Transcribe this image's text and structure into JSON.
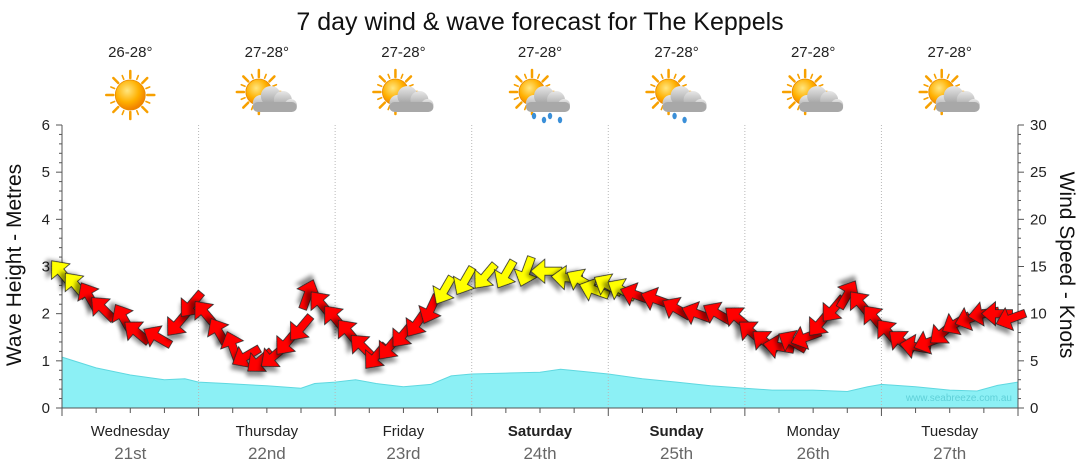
{
  "title": "7 day wind & wave forecast for The Keppels",
  "watermark": "www.seabreeze.com.au",
  "days": [
    {
      "name": "Wednesday",
      "date": "21st",
      "bold": false,
      "temp": "26-28°",
      "icon": "sunny-icon"
    },
    {
      "name": "Thursday",
      "date": "22nd",
      "bold": false,
      "temp": "27-28°",
      "icon": "partly-cloudy-icon"
    },
    {
      "name": "Friday",
      "date": "23rd",
      "bold": false,
      "temp": "27-28°",
      "icon": "partly-cloudy-icon"
    },
    {
      "name": "Saturday",
      "date": "24th",
      "bold": true,
      "temp": "27-28°",
      "icon": "showers-icon"
    },
    {
      "name": "Sunday",
      "date": "25th",
      "bold": true,
      "temp": "27-28°",
      "icon": "light-showers-icon"
    },
    {
      "name": "Monday",
      "date": "26th",
      "bold": false,
      "temp": "27-28°",
      "icon": "partly-cloudy-icon"
    },
    {
      "name": "Tuesday",
      "date": "27th",
      "bold": false,
      "temp": "27-28°",
      "icon": "partly-cloudy-icon"
    }
  ],
  "chart_data": {
    "type": "area",
    "title": "7 day wind & wave forecast for The Keppels",
    "x_unit": "days from start of Wednesday 21st",
    "y_left": {
      "label": "Wave Height - Metres",
      "range": [
        0,
        6
      ],
      "ticks": [
        "0",
        "1",
        "2",
        "3",
        "4",
        "5",
        "6"
      ]
    },
    "y_right": {
      "label": "Wind Speed - Knots",
      "range": [
        0,
        30
      ],
      "ticks": [
        "0",
        "5",
        "10",
        "15",
        "20",
        "25",
        "30"
      ]
    },
    "grid": "dotted vertical day dividers",
    "wave_height": [
      {
        "x": 0.0,
        "y": 1.08
      },
      {
        "x": 0.25,
        "y": 0.85
      },
      {
        "x": 0.5,
        "y": 0.7
      },
      {
        "x": 0.75,
        "y": 0.6
      },
      {
        "x": 0.9,
        "y": 0.62
      },
      {
        "x": 1.0,
        "y": 0.55
      },
      {
        "x": 1.2,
        "y": 0.52
      },
      {
        "x": 1.5,
        "y": 0.47
      },
      {
        "x": 1.75,
        "y": 0.42
      },
      {
        "x": 1.85,
        "y": 0.52
      },
      {
        "x": 2.0,
        "y": 0.55
      },
      {
        "x": 2.15,
        "y": 0.6
      },
      {
        "x": 2.3,
        "y": 0.52
      },
      {
        "x": 2.5,
        "y": 0.45
      },
      {
        "x": 2.7,
        "y": 0.5
      },
      {
        "x": 2.85,
        "y": 0.68
      },
      {
        "x": 3.0,
        "y": 0.72
      },
      {
        "x": 3.25,
        "y": 0.74
      },
      {
        "x": 3.5,
        "y": 0.76
      },
      {
        "x": 3.65,
        "y": 0.82
      },
      {
        "x": 3.8,
        "y": 0.78
      },
      {
        "x": 4.0,
        "y": 0.72
      },
      {
        "x": 4.25,
        "y": 0.62
      },
      {
        "x": 4.5,
        "y": 0.55
      },
      {
        "x": 4.75,
        "y": 0.47
      },
      {
        "x": 5.0,
        "y": 0.42
      },
      {
        "x": 5.2,
        "y": 0.38
      },
      {
        "x": 5.5,
        "y": 0.38
      },
      {
        "x": 5.75,
        "y": 0.35
      },
      {
        "x": 5.9,
        "y": 0.45
      },
      {
        "x": 6.0,
        "y": 0.5
      },
      {
        "x": 6.25,
        "y": 0.45
      },
      {
        "x": 6.5,
        "y": 0.38
      },
      {
        "x": 6.7,
        "y": 0.36
      },
      {
        "x": 6.85,
        "y": 0.48
      },
      {
        "x": 7.0,
        "y": 0.55
      }
    ],
    "wind": [
      {
        "x": 0.0,
        "knots": 14.3,
        "dir_deg": 320
      },
      {
        "x": 0.1,
        "knots": 13.0,
        "dir_deg": 320
      },
      {
        "x": 0.2,
        "knots": 11.8,
        "dir_deg": 330
      },
      {
        "x": 0.3,
        "knots": 10.5,
        "dir_deg": 315
      },
      {
        "x": 0.45,
        "knots": 9.5,
        "dir_deg": 330
      },
      {
        "x": 0.55,
        "knots": 8.0,
        "dir_deg": 310
      },
      {
        "x": 0.7,
        "knots": 7.5,
        "dir_deg": 300
      },
      {
        "x": 0.85,
        "knots": 9.0,
        "dir_deg": 220
      },
      {
        "x": 0.95,
        "knots": 11.0,
        "dir_deg": 220
      },
      {
        "x": 1.05,
        "knots": 10.0,
        "dir_deg": 320
      },
      {
        "x": 1.15,
        "knots": 8.0,
        "dir_deg": 330
      },
      {
        "x": 1.25,
        "knots": 6.5,
        "dir_deg": 340
      },
      {
        "x": 1.35,
        "knots": 5.5,
        "dir_deg": 240
      },
      {
        "x": 1.45,
        "knots": 5.0,
        "dir_deg": 230
      },
      {
        "x": 1.55,
        "knots": 5.5,
        "dir_deg": 230
      },
      {
        "x": 1.65,
        "knots": 7.0,
        "dir_deg": 220
      },
      {
        "x": 1.75,
        "knots": 8.5,
        "dir_deg": 220
      },
      {
        "x": 1.8,
        "knots": 12.0,
        "dir_deg": 20
      },
      {
        "x": 1.9,
        "knots": 11.0,
        "dir_deg": 320
      },
      {
        "x": 2.0,
        "knots": 9.5,
        "dir_deg": 320
      },
      {
        "x": 2.1,
        "knots": 8.0,
        "dir_deg": 320
      },
      {
        "x": 2.2,
        "knots": 6.5,
        "dir_deg": 315
      },
      {
        "x": 2.3,
        "knots": 5.5,
        "dir_deg": 220
      },
      {
        "x": 2.4,
        "knots": 6.5,
        "dir_deg": 220
      },
      {
        "x": 2.5,
        "knots": 7.8,
        "dir_deg": 220
      },
      {
        "x": 2.6,
        "knots": 9.0,
        "dir_deg": 215
      },
      {
        "x": 2.7,
        "knots": 10.5,
        "dir_deg": 205
      },
      {
        "x": 2.8,
        "knots": 12.5,
        "dir_deg": 210
      },
      {
        "x": 2.95,
        "knots": 13.5,
        "dir_deg": 210
      },
      {
        "x": 3.1,
        "knots": 14.0,
        "dir_deg": 220
      },
      {
        "x": 3.25,
        "knots": 14.2,
        "dir_deg": 210
      },
      {
        "x": 3.4,
        "knots": 14.5,
        "dir_deg": 200
      },
      {
        "x": 3.55,
        "knots": 14.5,
        "dir_deg": 270
      },
      {
        "x": 3.7,
        "knots": 13.8,
        "dir_deg": 275
      },
      {
        "x": 3.8,
        "knots": 13.5,
        "dir_deg": 300
      },
      {
        "x": 3.9,
        "knots": 12.5,
        "dir_deg": 290
      },
      {
        "x": 4.0,
        "knots": 13.0,
        "dir_deg": 300
      },
      {
        "x": 4.1,
        "knots": 12.5,
        "dir_deg": 300
      },
      {
        "x": 4.2,
        "knots": 12.0,
        "dir_deg": 290
      },
      {
        "x": 4.35,
        "knots": 11.5,
        "dir_deg": 290
      },
      {
        "x": 4.5,
        "knots": 10.5,
        "dir_deg": 300
      },
      {
        "x": 4.65,
        "knots": 10.0,
        "dir_deg": 290
      },
      {
        "x": 4.8,
        "knots": 10.0,
        "dir_deg": 300
      },
      {
        "x": 4.95,
        "knots": 9.5,
        "dir_deg": 310
      },
      {
        "x": 5.05,
        "knots": 8.0,
        "dir_deg": 310
      },
      {
        "x": 5.15,
        "knots": 7.0,
        "dir_deg": 310
      },
      {
        "x": 5.25,
        "knots": 6.5,
        "dir_deg": 280
      },
      {
        "x": 5.35,
        "knots": 7.0,
        "dir_deg": 300
      },
      {
        "x": 5.45,
        "knots": 7.5,
        "dir_deg": 250
      },
      {
        "x": 5.55,
        "knots": 9.0,
        "dir_deg": 220
      },
      {
        "x": 5.65,
        "knots": 10.5,
        "dir_deg": 220
      },
      {
        "x": 5.75,
        "knots": 12.0,
        "dir_deg": 30
      },
      {
        "x": 5.85,
        "knots": 11.0,
        "dir_deg": 320
      },
      {
        "x": 5.95,
        "knots": 9.5,
        "dir_deg": 320
      },
      {
        "x": 6.05,
        "knots": 8.0,
        "dir_deg": 320
      },
      {
        "x": 6.15,
        "knots": 7.0,
        "dir_deg": 310
      },
      {
        "x": 6.25,
        "knots": 6.5,
        "dir_deg": 280
      },
      {
        "x": 6.35,
        "knots": 7.0,
        "dir_deg": 250
      },
      {
        "x": 6.45,
        "knots": 8.0,
        "dir_deg": 230
      },
      {
        "x": 6.55,
        "knots": 9.0,
        "dir_deg": 240
      },
      {
        "x": 6.65,
        "knots": 9.5,
        "dir_deg": 250
      },
      {
        "x": 6.75,
        "knots": 10.0,
        "dir_deg": 260
      },
      {
        "x": 6.85,
        "knots": 10.0,
        "dir_deg": 270
      },
      {
        "x": 6.95,
        "knots": 9.5,
        "dir_deg": 250
      }
    ],
    "colors": {
      "wave_fill": "#8cf0f5",
      "wave_line": "#5fd8e0",
      "wind_strong": "#ff0000",
      "wind_light": "#ffff00",
      "arrow_stroke": "#222222",
      "grid": "#b8b8b8",
      "axis": "#555555"
    }
  }
}
